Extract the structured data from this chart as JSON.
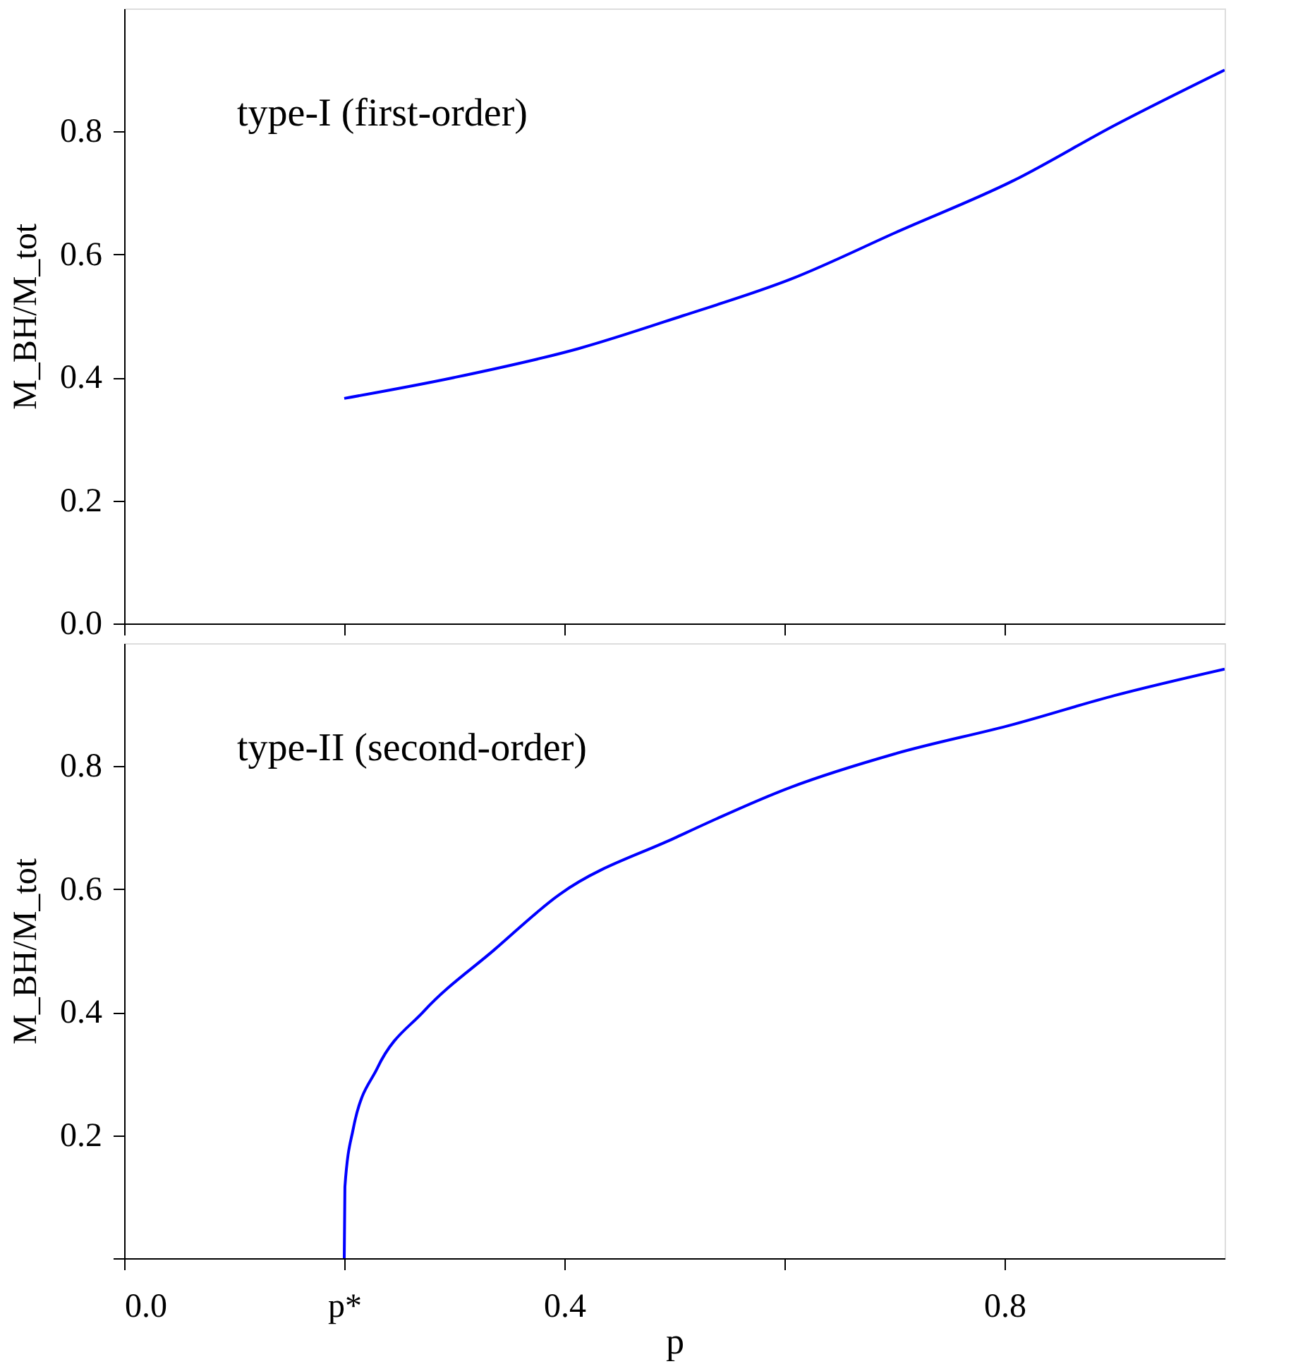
{
  "chart_data": [
    {
      "type": "line",
      "ylabel": "M_BH/M_tot",
      "annotations": [
        "type-I (first-order)"
      ],
      "tick_labels": "y",
      "xlim": [
        0,
        1.0
      ],
      "xticks": [
        {
          "value": 0,
          "label": null
        },
        {
          "value": 0.2,
          "label": null
        },
        {
          "value": 0.4,
          "label": null
        },
        {
          "value": 0.6,
          "label": null
        },
        {
          "value": 0.8,
          "label": null
        }
      ],
      "ylim": [
        0,
        1.0
      ],
      "yticks": [
        {
          "value": 0,
          "label": "0.0"
        },
        0.2,
        0.4,
        0.6,
        0.8
      ],
      "series": [
        {
          "color": "#0000ff",
          "x": [
            0.2,
            0.3,
            0.413,
            0.507,
            0.606,
            0.704,
            0.808,
            0.9,
            1.0
          ],
          "values": [
            0.366,
            0.4,
            0.447,
            0.5,
            0.56,
            0.638,
            0.72,
            0.81,
            0.9
          ]
        }
      ]
    },
    {
      "type": "line",
      "ylabel": "M_BH/M_tot",
      "xlabel": "p",
      "annotations": [
        "type-II (second-order)"
      ],
      "xlim": [
        0,
        1.0
      ],
      "xticks": [
        {
          "value": 0,
          "label": "0.0"
        },
        {
          "value": 0.2,
          "label": "p*"
        },
        0.4,
        {
          "value": 0.6,
          "label": null
        },
        0.8
      ],
      "ylim": [
        0,
        1.0
      ],
      "yticks": [
        {
          "value": 0,
          "label": null
        },
        0.2,
        0.4,
        0.6,
        0.8
      ],
      "series": [
        {
          "color": "#0000ff",
          "x": [
            0.2,
            0.2006,
            0.208,
            0.23,
            0.272,
            0.336,
            0.396,
            0.5,
            0.606,
            0.7,
            0.808,
            0.9,
            1.0
          ],
          "values": [
            0,
            0.116,
            0.209,
            0.309,
            0.401,
            0.501,
            0.592,
            0.683,
            0.766,
            0.82,
            0.868,
            0.915,
            0.958
          ]
        }
      ]
    }
  ]
}
